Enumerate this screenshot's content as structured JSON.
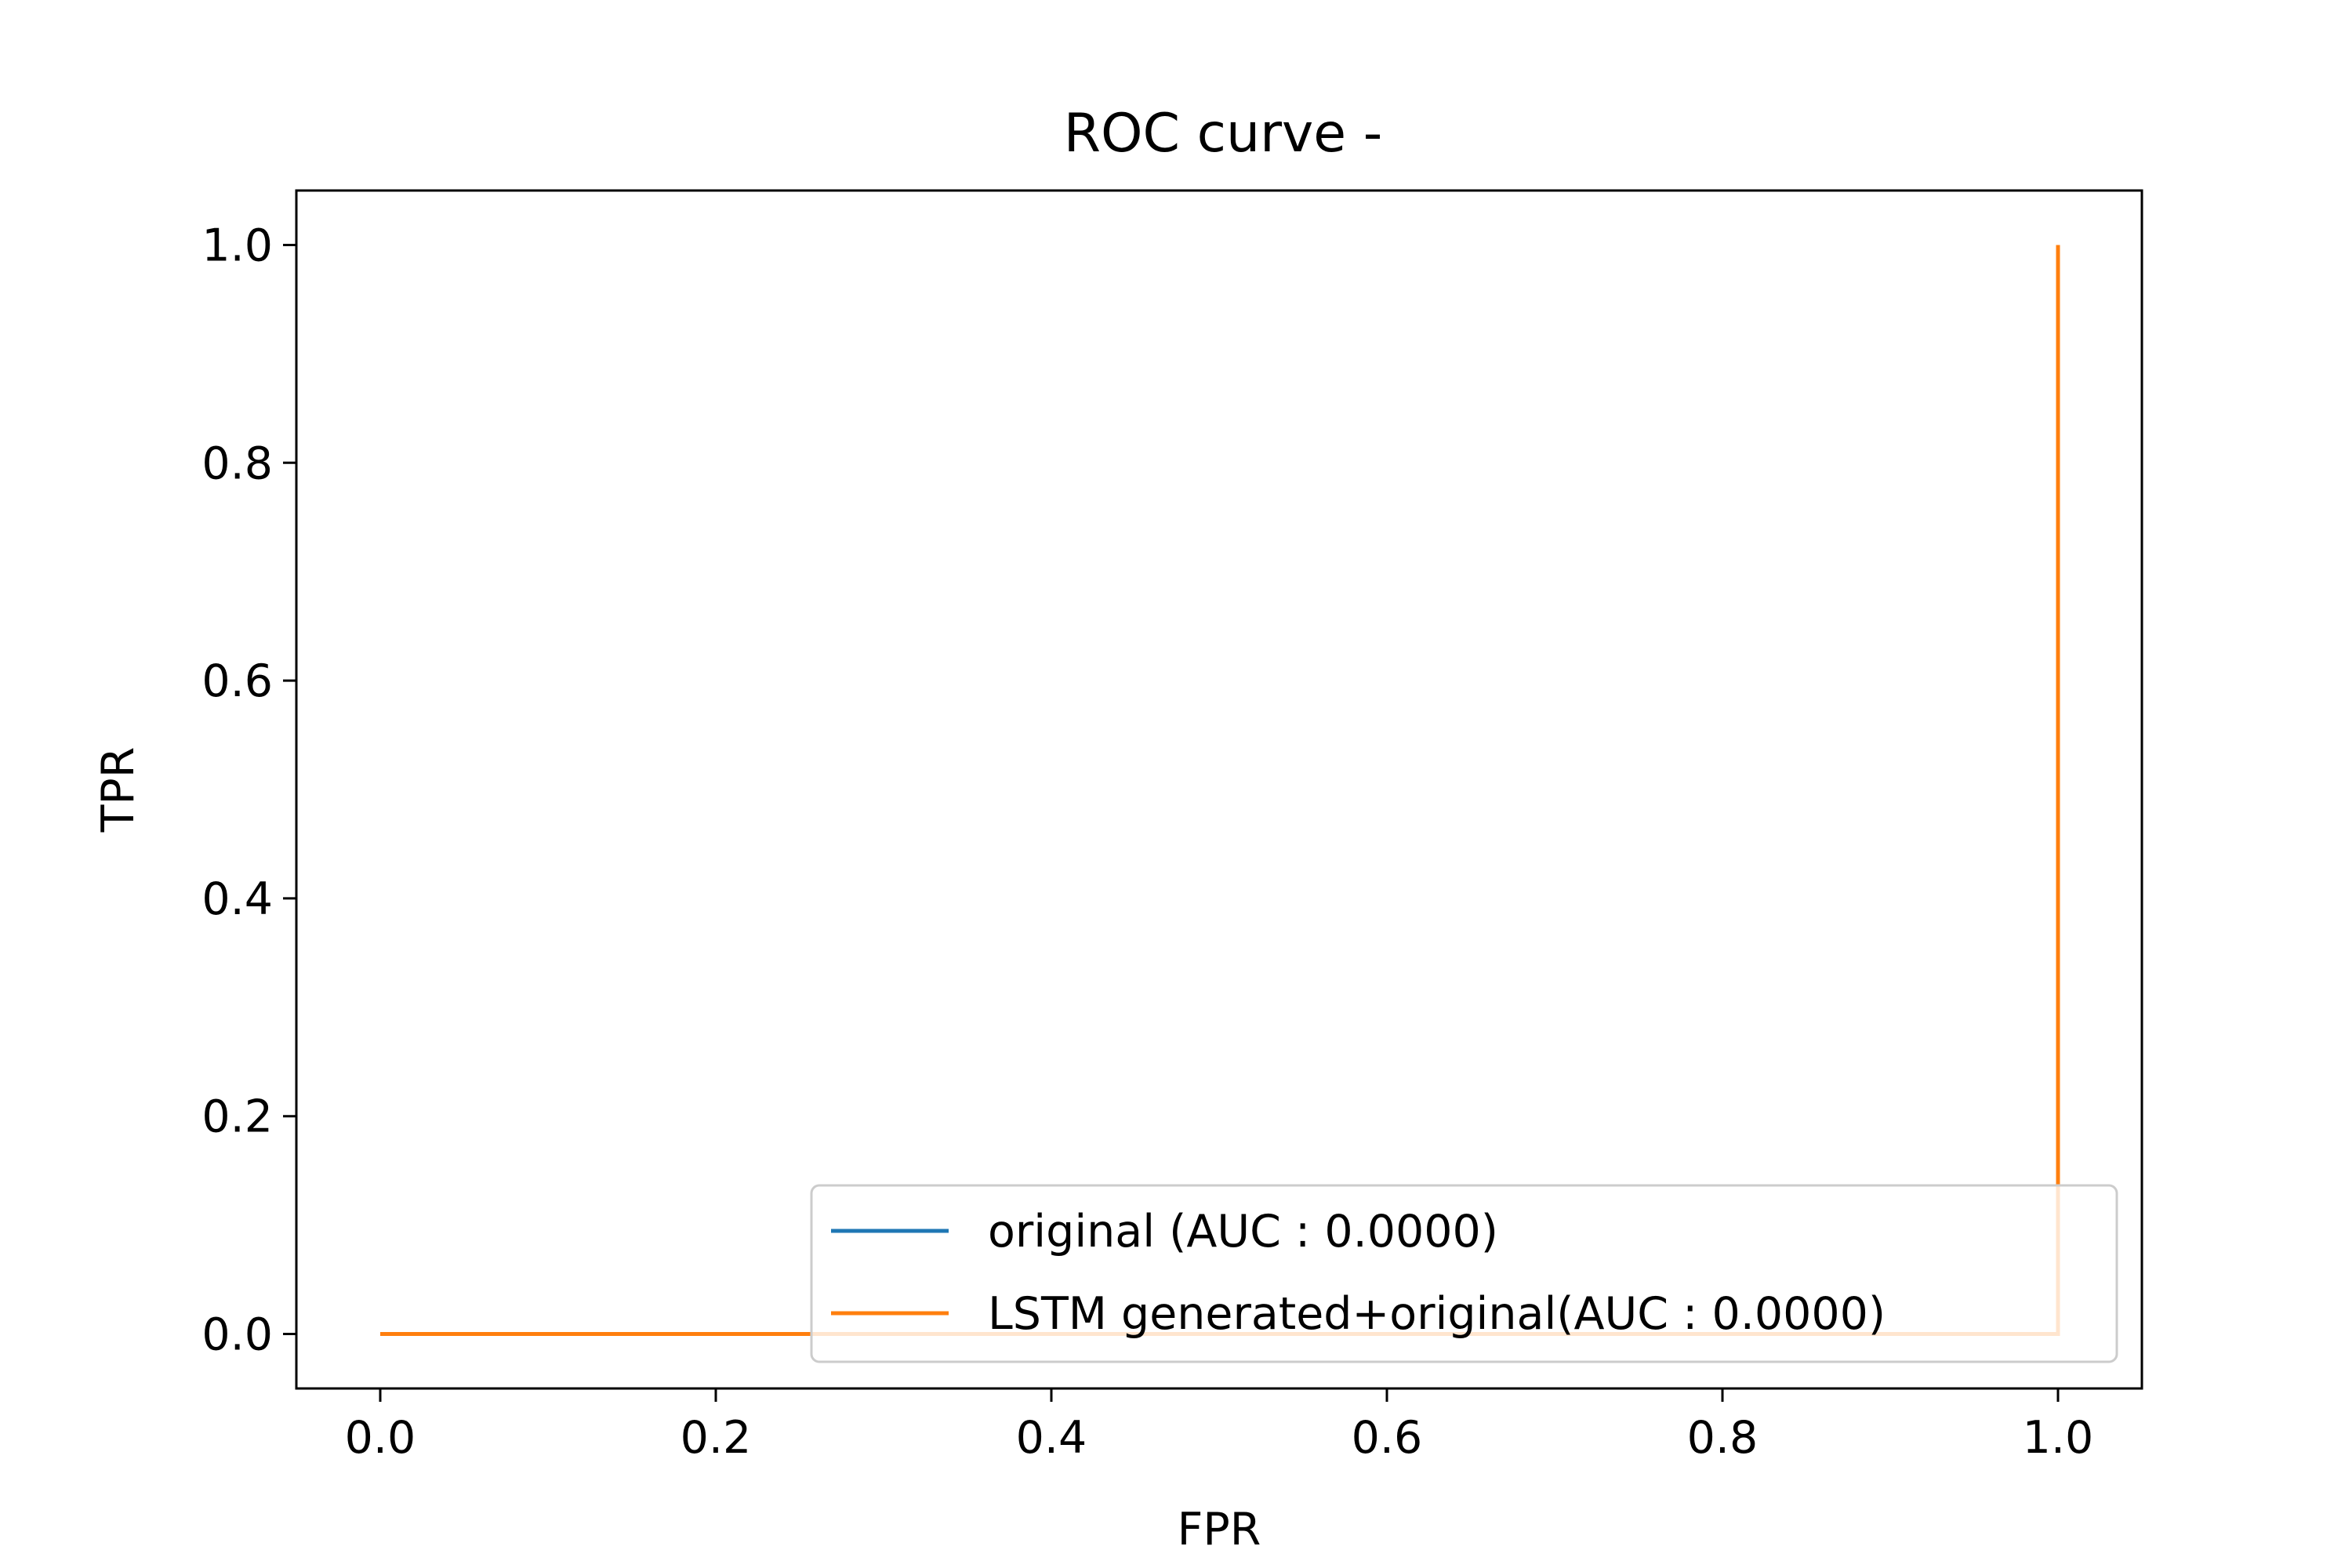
{
  "chart_data": {
    "type": "line",
    "title": "ROC curve -",
    "xlabel": "FPR",
    "ylabel": "TPR",
    "xlim": [
      -0.05,
      1.05
    ],
    "ylim": [
      -0.05,
      1.05
    ],
    "xticks": [
      0.0,
      0.2,
      0.4,
      0.6,
      0.8,
      1.0
    ],
    "yticks": [
      0.0,
      0.2,
      0.4,
      0.6,
      0.8,
      1.0
    ],
    "xtick_labels": [
      "0.0",
      "0.2",
      "0.4",
      "0.6",
      "0.8",
      "1.0"
    ],
    "ytick_labels": [
      "0.0",
      "0.2",
      "0.4",
      "0.6",
      "0.8",
      "1.0"
    ],
    "grid": false,
    "legend_position": "lower-right",
    "series": [
      {
        "name": "original (AUC : 0.0000)",
        "color": "#1f77b4",
        "x": [
          0.0,
          1.0,
          1.0
        ],
        "y": [
          0.0,
          0.0,
          1.0
        ]
      },
      {
        "name": "LSTM generated+original(AUC : 0.0000)",
        "color": "#ff7f0e",
        "x": [
          0.0,
          1.0,
          1.0
        ],
        "y": [
          0.0,
          0.0,
          1.0
        ]
      }
    ]
  }
}
